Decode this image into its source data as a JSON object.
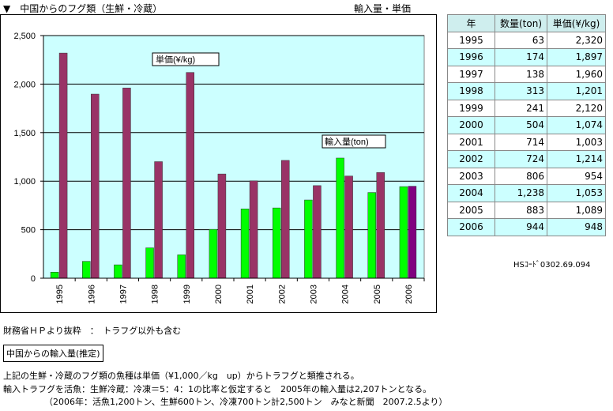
{
  "header": {
    "title": "▼　中国からのフグ類（生鮮・冷蔵）",
    "units": "輸入量・単価"
  },
  "chart_data": {
    "type": "bar",
    "categories": [
      "1995",
      "1996",
      "1997",
      "1998",
      "1999",
      "2000",
      "2001",
      "2002",
      "2003",
      "2004",
      "2005",
      "2006"
    ],
    "series": [
      {
        "name": "輸入量(ton)",
        "values": [
          63,
          174,
          138,
          313,
          241,
          504,
          714,
          724,
          806,
          1238,
          883,
          944
        ],
        "color": "#00ff00"
      },
      {
        "name": "単価(¥/kg)",
        "values": [
          2320,
          1897,
          1960,
          1201,
          2120,
          1074,
          1003,
          1214,
          954,
          1053,
          1089,
          948
        ],
        "color": "#993366"
      }
    ],
    "ylim": [
      0,
      2500
    ],
    "yticks": [
      "0",
      "500",
      "1,000",
      "1,500",
      "2,000",
      "2,500"
    ],
    "grid": true,
    "plot_background": "#ccffff",
    "annotations": {
      "price_label": "単価(¥/kg)",
      "volume_label": "輸入量(ton)"
    }
  },
  "table": {
    "headers": [
      "年",
      "数量(ton)",
      "単価(¥/kg)"
    ],
    "rows": [
      [
        "1995",
        "63",
        "2,320"
      ],
      [
        "1996",
        "174",
        "1,897"
      ],
      [
        "1997",
        "138",
        "1,960"
      ],
      [
        "1998",
        "313",
        "1,201"
      ],
      [
        "1999",
        "241",
        "2,120"
      ],
      [
        "2000",
        "504",
        "1,074"
      ],
      [
        "2001",
        "714",
        "1,003"
      ],
      [
        "2002",
        "724",
        "1,214"
      ],
      [
        "2003",
        "806",
        "954"
      ],
      [
        "2004",
        "1,238",
        "1,053"
      ],
      [
        "2005",
        "883",
        "1,089"
      ],
      [
        "2006",
        "944",
        "948"
      ]
    ]
  },
  "hs_code": "HSｺｰﾄﾞ0302.69.094",
  "footer": {
    "source": "財務省ＨＰより抜粋　：　トラフグ以外も含む",
    "estimate_button": "中国からの輸入量(推定)",
    "notes": [
      "上記の生鮮・冷蔵のフグ類の魚種は単価（¥1,000／kg　up）からトラフグと類推される。",
      "輸入トラフグを活魚：生鮮冷蔵：冷凍＝5：4：1の比率と仮定すると　2005年の輸入量は2,207トンとなる。",
      "（2006年：活魚1,200トン、生鮮600トン、冷凍700トン計2,500トン　みなと新聞　2007.2.5より）"
    ]
  }
}
